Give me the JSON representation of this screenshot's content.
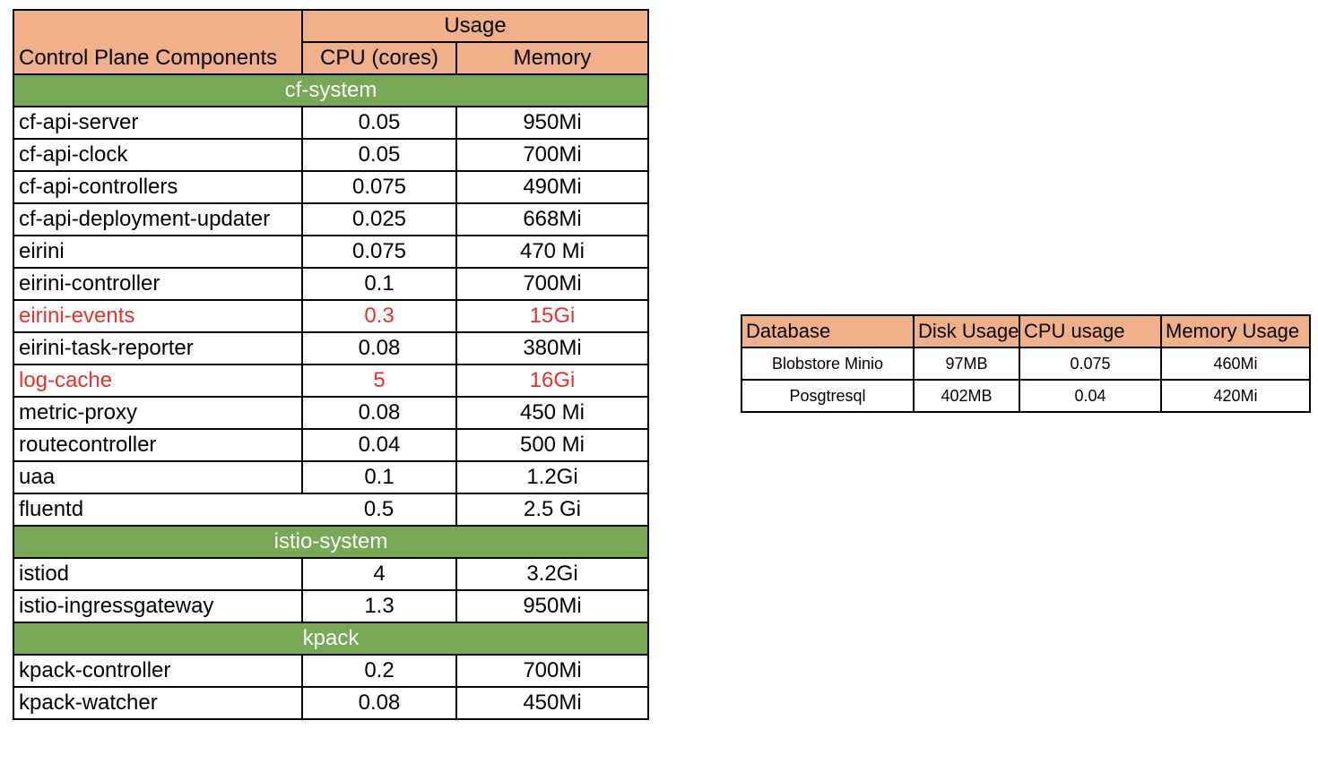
{
  "main_table": {
    "header": {
      "name_label": "Control Plane  Components",
      "usage_label": "Usage",
      "cpu_label": "CPU (cores)",
      "memory_label": "Memory"
    },
    "groups": [
      {
        "name": "cf-system",
        "rows": [
          {
            "name": "cf-api-server",
            "cpu": "0.05",
            "memory": "950Mi"
          },
          {
            "name": "cf-api-clock",
            "cpu": "0.05",
            "memory": "700Mi"
          },
          {
            "name": "cf-api-controllers",
            "cpu": "0.075",
            "memory": "490Mi"
          },
          {
            "name": "cf-api-deployment-updater",
            "cpu": "0.025",
            "memory": "668Mi"
          },
          {
            "name": "eirini",
            "cpu": "0.075",
            "memory": "470 Mi"
          },
          {
            "name": "eirini-controller",
            "cpu": "0.1",
            "memory": "700Mi"
          },
          {
            "name": "eirini-events",
            "cpu": "0.3",
            "memory": "15Gi",
            "highlight": true
          },
          {
            "name": "eirini-task-reporter",
            "cpu": "0.08",
            "memory": "380Mi"
          },
          {
            "name": "log-cache",
            "cpu": "5",
            "memory": "16Gi",
            "highlight": true
          },
          {
            "name": "metric-proxy",
            "cpu": "0.08",
            "memory": "450 Mi"
          },
          {
            "name": "routecontroller",
            "cpu": "0.04",
            "memory": "500 Mi"
          },
          {
            "name": "uaa",
            "cpu": "0.1",
            "memory": "1.2Gi"
          },
          {
            "name": "fluentd",
            "cpu": "0.5",
            "memory": "2.5 Gi",
            "merged_name_cpu": true
          }
        ]
      },
      {
        "name": "istio-system",
        "rows": [
          {
            "name": "istiod",
            "cpu": "4",
            "memory": "3.2Gi"
          },
          {
            "name": "istio-ingressgateway",
            "cpu": "1.3",
            "memory": "950Mi"
          }
        ]
      },
      {
        "name": "kpack",
        "rows": [
          {
            "name": "kpack-controller",
            "cpu": "0.2",
            "memory": "700Mi"
          },
          {
            "name": "kpack-watcher",
            "cpu": "0.08",
            "memory": "450Mi"
          }
        ]
      }
    ]
  },
  "database_table": {
    "headers": [
      "Database",
      "Disk Usage",
      "CPU usage",
      "Memory Usage"
    ],
    "rows": [
      [
        "Blobstore Minio",
        "97MB",
        "0.075",
        "460Mi"
      ],
      [
        "Posgtresql",
        "402MB",
        "0.04",
        "420Mi"
      ]
    ]
  },
  "colors": {
    "header_bg": "#f0b089",
    "group_bg": "#77a855",
    "group_text": "#ffffff",
    "highlight_text": "#e5332a",
    "border": "#000000"
  }
}
